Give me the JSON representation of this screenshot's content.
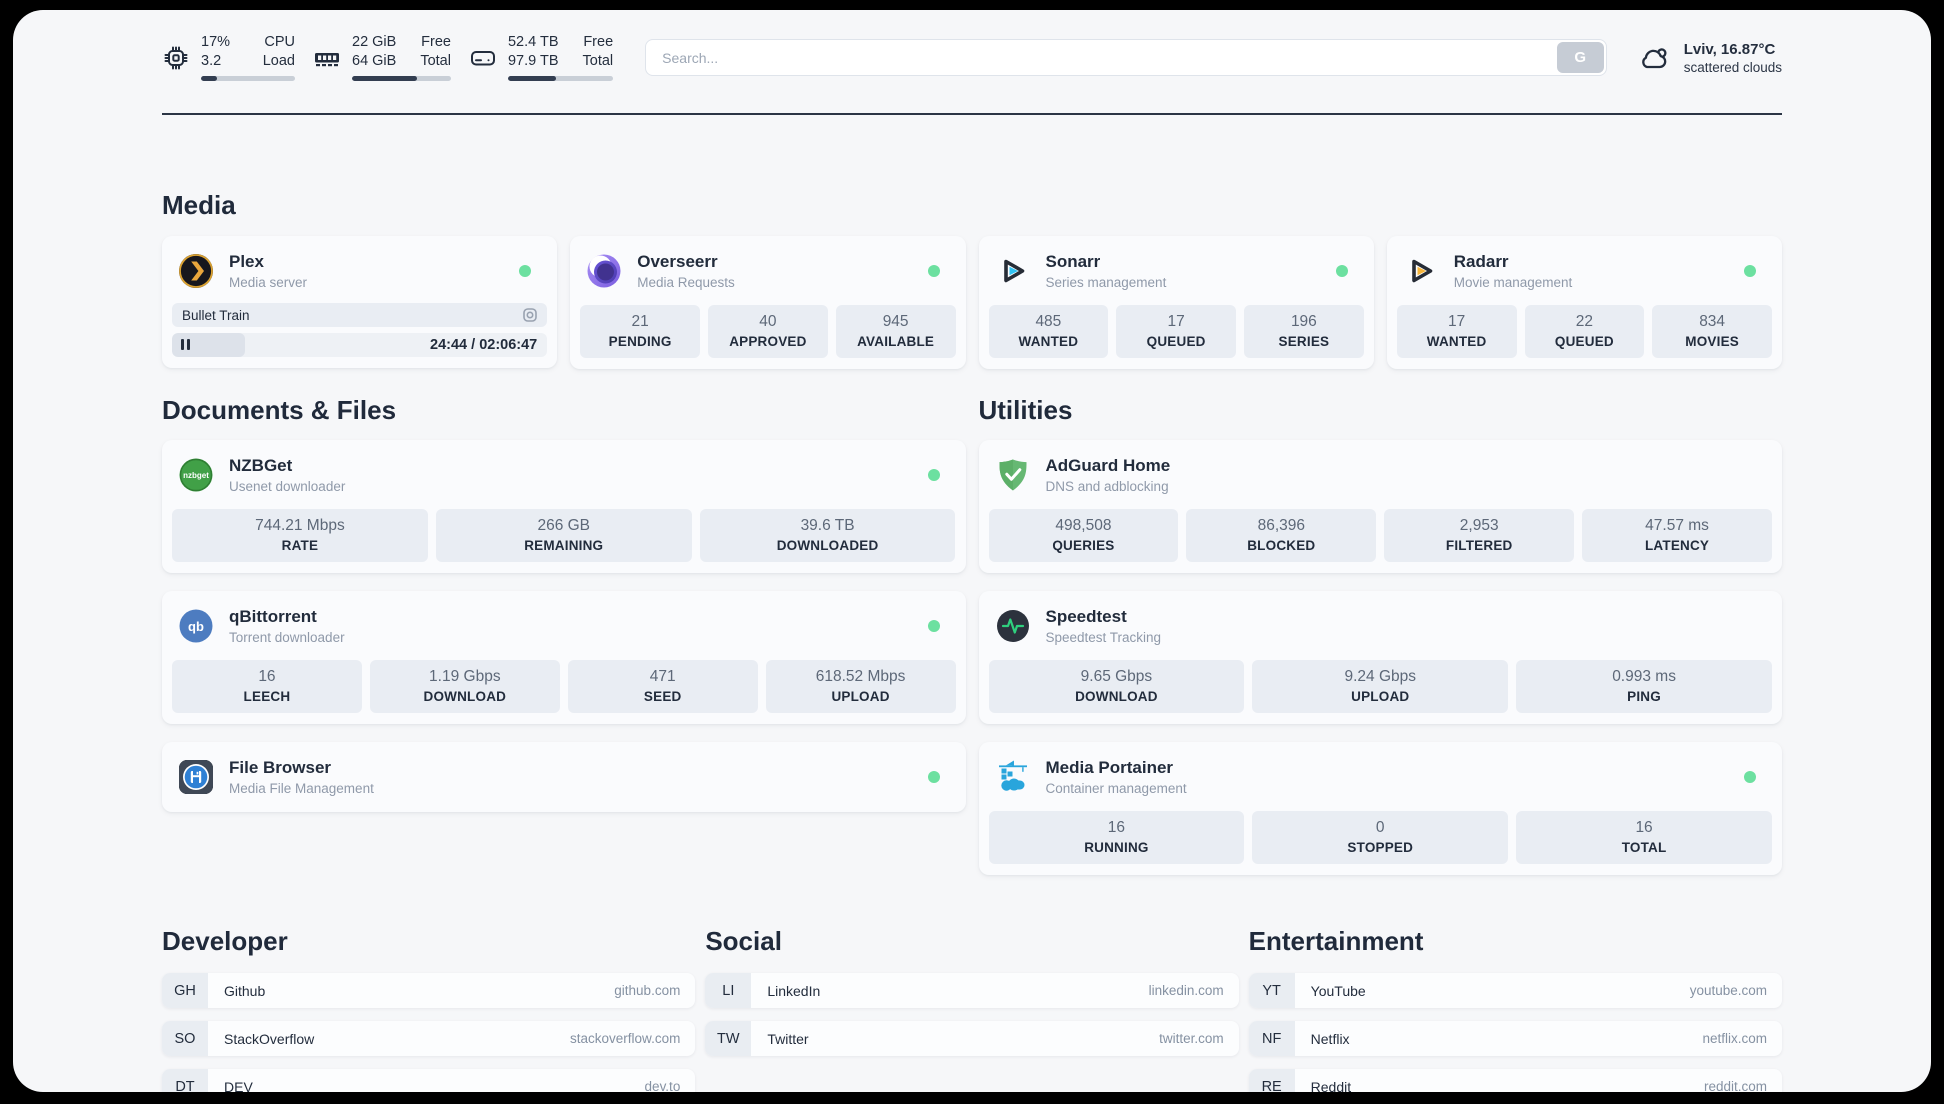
{
  "topbar": {
    "cpu": {
      "value_top": "17%",
      "value_bottom": "3.2",
      "label_top": "CPU",
      "label_bottom": "Load",
      "progress_pct": 17
    },
    "ram": {
      "value_top": "22 GiB",
      "value_bottom": "64 GiB",
      "label_top": "Free",
      "label_bottom": "Total",
      "progress_pct": 66
    },
    "disk": {
      "value_top": "52.4 TB",
      "value_bottom": "97.9 TB",
      "label_top": "Free",
      "label_bottom": "Total",
      "progress_pct": 46
    },
    "search": {
      "placeholder": "Search...",
      "button_label": "G"
    },
    "weather": {
      "location": "Lviv, 16.87°C",
      "condition": "scattered clouds"
    }
  },
  "sections": {
    "media": "Media",
    "documents": "Documents & Files",
    "utilities": "Utilities",
    "developer": "Developer",
    "social": "Social",
    "entertainment": "Entertainment"
  },
  "apps": {
    "plex": {
      "name": "Plex",
      "description": "Media server",
      "online": true,
      "media": {
        "title": "Bullet Train",
        "time": "24:44 / 02:06:47",
        "progress_pct": 19.5
      }
    },
    "overseerr": {
      "name": "Overseerr",
      "description": "Media Requests",
      "online": true,
      "stats": [
        {
          "value": "21",
          "label": "PENDING"
        },
        {
          "value": "40",
          "label": "APPROVED"
        },
        {
          "value": "945",
          "label": "AVAILABLE"
        }
      ]
    },
    "sonarr": {
      "name": "Sonarr",
      "description": "Series management",
      "online": true,
      "stats": [
        {
          "value": "485",
          "label": "WANTED"
        },
        {
          "value": "17",
          "label": "QUEUED"
        },
        {
          "value": "196",
          "label": "SERIES"
        }
      ]
    },
    "radarr": {
      "name": "Radarr",
      "description": "Movie management",
      "online": true,
      "stats": [
        {
          "value": "17",
          "label": "WANTED"
        },
        {
          "value": "22",
          "label": "QUEUED"
        },
        {
          "value": "834",
          "label": "MOVIES"
        }
      ]
    },
    "nzbget": {
      "name": "NZBGet",
      "description": "Usenet downloader",
      "online": true,
      "icon_text": "nzbget",
      "stats": [
        {
          "value": "744.21 Mbps",
          "label": "RATE"
        },
        {
          "value": "266 GB",
          "label": "REMAINING"
        },
        {
          "value": "39.6 TB",
          "label": "DOWNLOADED"
        }
      ]
    },
    "qbittorrent": {
      "name": "qBittorrent",
      "description": "Torrent downloader",
      "online": true,
      "icon_text": "qb",
      "stats": [
        {
          "value": "16",
          "label": "LEECH"
        },
        {
          "value": "1.19 Gbps",
          "label": "DOWNLOAD"
        },
        {
          "value": "471",
          "label": "SEED"
        },
        {
          "value": "618.52 Mbps",
          "label": "UPLOAD"
        }
      ]
    },
    "filebrowser": {
      "name": "File Browser",
      "description": "Media File Management",
      "online": true
    },
    "adguard": {
      "name": "AdGuard Home",
      "description": "DNS and adblocking",
      "stats": [
        {
          "value": "498,508",
          "label": "QUERIES"
        },
        {
          "value": "86,396",
          "label": "BLOCKED"
        },
        {
          "value": "2,953",
          "label": "FILTERED"
        },
        {
          "value": "47.57 ms",
          "label": "LATENCY"
        }
      ]
    },
    "speedtest": {
      "name": "Speedtest",
      "description": "Speedtest Tracking",
      "stats": [
        {
          "value": "9.65 Gbps",
          "label": "DOWNLOAD"
        },
        {
          "value": "9.24 Gbps",
          "label": "UPLOAD"
        },
        {
          "value": "0.993 ms",
          "label": "PING"
        }
      ]
    },
    "portainer": {
      "name": "Media Portainer",
      "description": "Container management",
      "online": true,
      "stats": [
        {
          "value": "16",
          "label": "RUNNING"
        },
        {
          "value": "0",
          "label": "STOPPED"
        },
        {
          "value": "16",
          "label": "TOTAL"
        }
      ]
    }
  },
  "bookmarks": {
    "developer": [
      {
        "abbr": "GH",
        "name": "Github",
        "url": "github.com"
      },
      {
        "abbr": "SO",
        "name": "StackOverflow",
        "url": "stackoverflow.com"
      },
      {
        "abbr": "DT",
        "name": "DEV",
        "url": "dev.to"
      }
    ],
    "social": [
      {
        "abbr": "LI",
        "name": "LinkedIn",
        "url": "linkedin.com"
      },
      {
        "abbr": "TW",
        "name": "Twitter",
        "url": "twitter.com"
      }
    ],
    "entertainment": [
      {
        "abbr": "YT",
        "name": "YouTube",
        "url": "youtube.com"
      },
      {
        "abbr": "NF",
        "name": "Netflix",
        "url": "netflix.com"
      },
      {
        "abbr": "RE",
        "name": "Reddit",
        "url": "reddit.com"
      }
    ]
  },
  "colors": {
    "online_dot": "#6ce0a0",
    "text_dark": "#232d3d",
    "stat_box_bg": "#e9edf3",
    "page_bg": "#f6f7f9",
    "frame_bg": "#000000"
  }
}
